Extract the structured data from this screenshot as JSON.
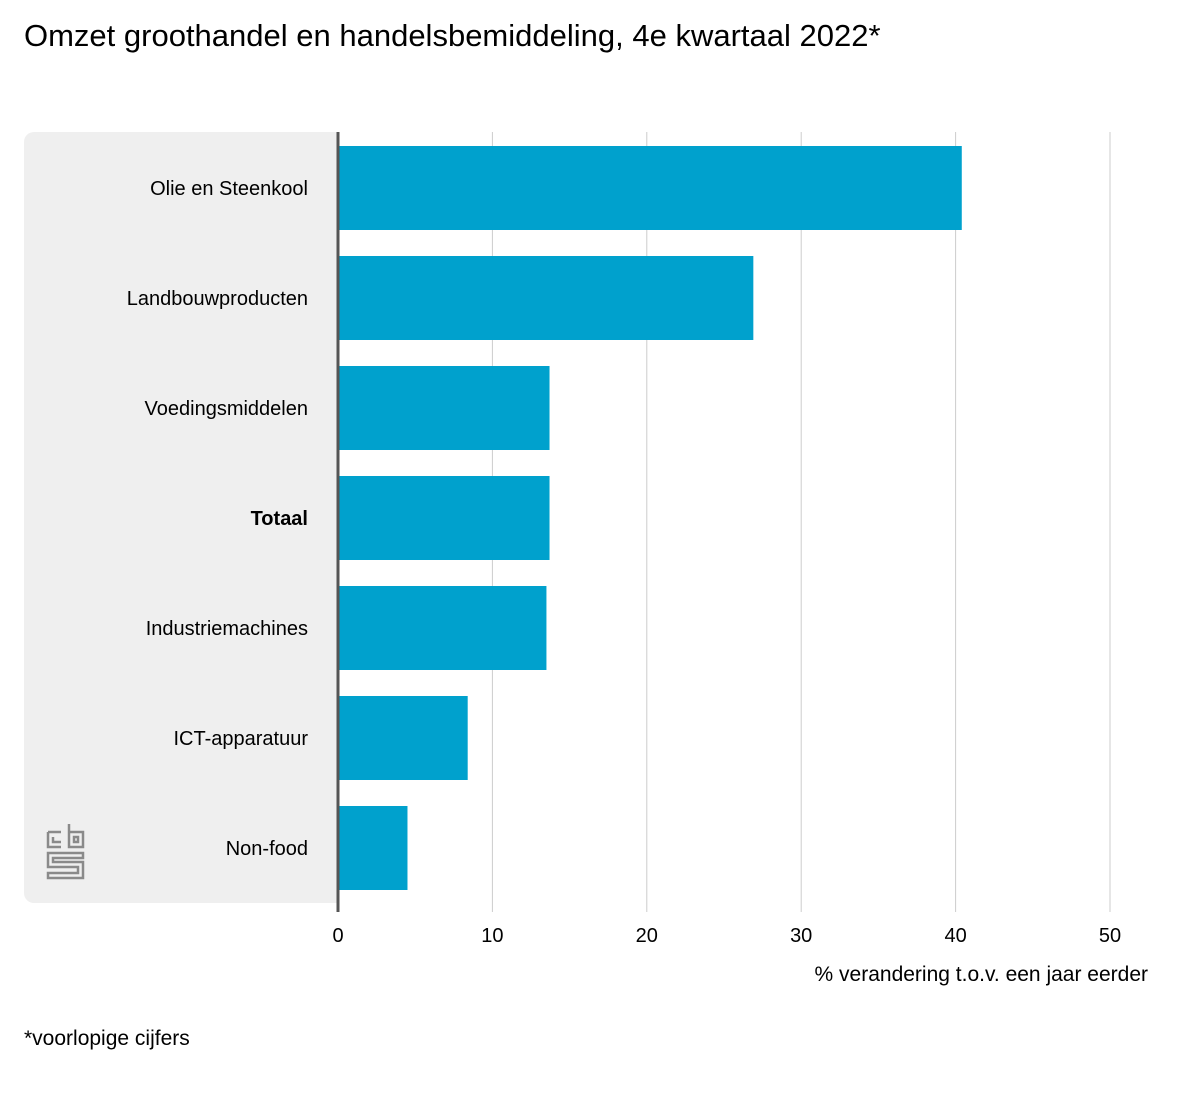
{
  "title": "Omzet groothandel en handelsbemiddeling, 4e kwartaal 2022*",
  "footnote": "*voorlopige cijfers",
  "logo_text": "cbs",
  "chart_data": {
    "type": "bar",
    "orientation": "horizontal",
    "title": "Omzet groothandel en handelsbemiddeling, 4e kwartaal 2022*",
    "xlabel": "% verandering t.o.v. een jaar eerder",
    "ylabel": "",
    "categories": [
      "Olie en Steenkool",
      "Landbouwproducten",
      "Voedingsmiddelen",
      "Totaal",
      "Industriemachines",
      "ICT-apparatuur",
      "Non-food"
    ],
    "bold_categories": [
      "Totaal"
    ],
    "values": [
      40.4,
      26.9,
      13.7,
      13.7,
      13.5,
      8.4,
      4.5
    ],
    "xlim": [
      0,
      50
    ],
    "xticks": [
      "0",
      "10",
      "20",
      "30",
      "40",
      "50"
    ],
    "grid": true,
    "bar_color": "#00a1cd",
    "grid_color": "#cccccc",
    "panel_color": "#efefef"
  }
}
